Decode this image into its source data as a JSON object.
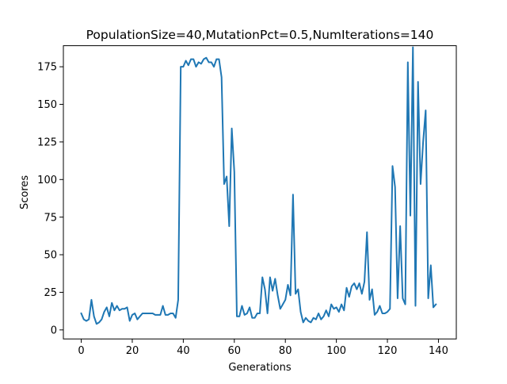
{
  "chart_data": {
    "type": "line",
    "title": "PopulationSize=40,MutationPct=0.5,NumIterations=140",
    "xlabel": "Generations",
    "ylabel": "Scores",
    "xlim": [
      -7,
      147
    ],
    "ylim": [
      -6,
      189
    ],
    "xticks": [
      0,
      20,
      40,
      60,
      80,
      100,
      120,
      140
    ],
    "yticks": [
      0,
      25,
      50,
      75,
      100,
      125,
      150,
      175
    ],
    "grid": false,
    "legend": "none",
    "series": [
      {
        "color": "#1f77b4",
        "x": [
          0,
          1,
          2,
          3,
          4,
          5,
          6,
          7,
          8,
          9,
          10,
          11,
          12,
          13,
          14,
          15,
          16,
          17,
          18,
          19,
          20,
          21,
          22,
          23,
          24,
          25,
          26,
          27,
          28,
          29,
          30,
          31,
          32,
          33,
          34,
          35,
          36,
          37,
          38,
          39,
          40,
          41,
          42,
          43,
          44,
          45,
          46,
          47,
          48,
          49,
          50,
          51,
          52,
          53,
          54,
          55,
          56,
          57,
          58,
          59,
          60,
          61,
          62,
          63,
          64,
          65,
          66,
          67,
          68,
          69,
          70,
          71,
          72,
          73,
          74,
          75,
          76,
          77,
          78,
          79,
          80,
          81,
          82,
          83,
          84,
          85,
          86,
          87,
          88,
          89,
          90,
          91,
          92,
          93,
          94,
          95,
          96,
          97,
          98,
          99,
          100,
          101,
          102,
          103,
          104,
          105,
          106,
          107,
          108,
          109,
          110,
          111,
          112,
          113,
          114,
          115,
          116,
          117,
          118,
          119,
          120,
          121,
          122,
          123,
          124,
          125,
          126,
          127,
          128,
          129,
          130,
          131,
          132,
          133,
          134,
          135,
          136,
          137,
          138,
          139
        ],
        "y": [
          11,
          7,
          6,
          7,
          20,
          9,
          4,
          5,
          7,
          12,
          15,
          9,
          18,
          13,
          16,
          13,
          14,
          14,
          15,
          6,
          10,
          11,
          7,
          9,
          11,
          11,
          11,
          11,
          11,
          10,
          10,
          10,
          16,
          10,
          10,
          11,
          11,
          8,
          20,
          175,
          175,
          179,
          176,
          180,
          180,
          175,
          178,
          177,
          180,
          181,
          178,
          178,
          175,
          180,
          180,
          168,
          97,
          102,
          69,
          134,
          105,
          9,
          9,
          16,
          10,
          11,
          15,
          8,
          8,
          11,
          11,
          35,
          27,
          11,
          35,
          26,
          34,
          23,
          14,
          17,
          20,
          30,
          23,
          90,
          24,
          27,
          12,
          5,
          8,
          6,
          5,
          8,
          7,
          11,
          7,
          9,
          13,
          9,
          17,
          14,
          15,
          12,
          17,
          13,
          28,
          22,
          29,
          31,
          27,
          31,
          24,
          32,
          65,
          20,
          27,
          10,
          12,
          16,
          11,
          11,
          12,
          14,
          109,
          95,
          21,
          69,
          21,
          17,
          178,
          76,
          188,
          16,
          165,
          97,
          125,
          146,
          21,
          43,
          15,
          17
        ]
      }
    ]
  }
}
